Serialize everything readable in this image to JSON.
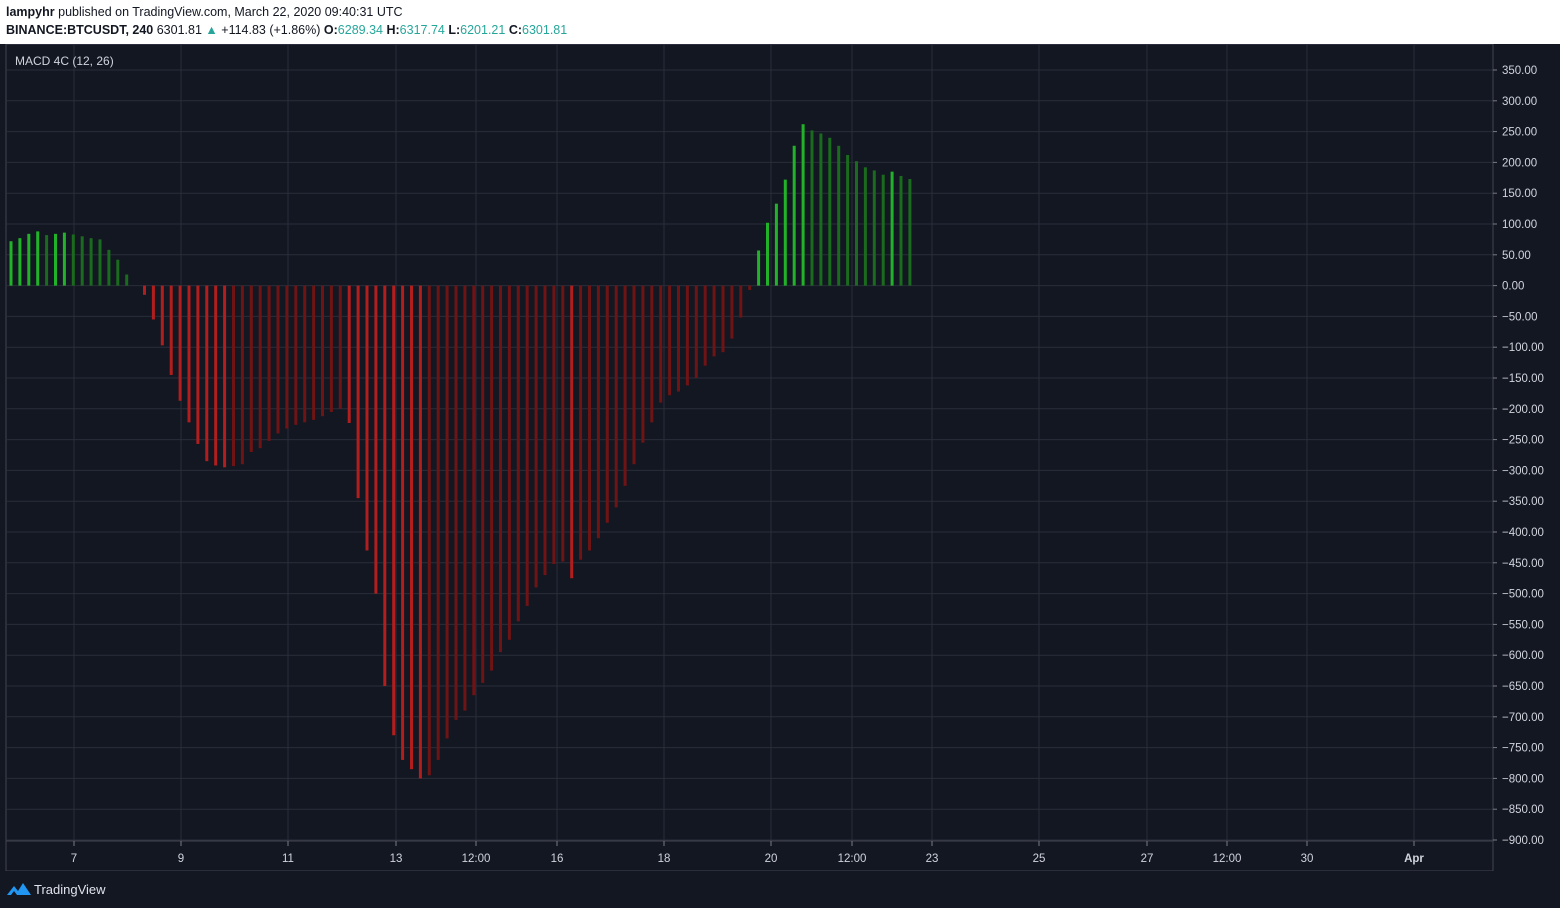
{
  "header": {
    "author": "lampyhr",
    "published_text": "published on TradingView.com, March 22, 2020 09:40:31 UTC",
    "symbol": "BINANCE:BTCUSDT, 240",
    "last_price": "6301.81",
    "change_arrow": "▲",
    "change": "+114.83 (+1.86%)",
    "open_label": "O:",
    "open": "6289.34",
    "high_label": "H:",
    "high": "6317.74",
    "low_label": "L:",
    "low": "6201.21",
    "close_label": "C:",
    "close": "6301.81"
  },
  "footer": {
    "brand": "TradingView"
  },
  "colors": {
    "background": "#131722",
    "grid": "#2a2e39",
    "bright_green": "#22b22a",
    "dark_green": "#1a6b1e",
    "bright_red": "#b21e1e",
    "dark_red": "#6e1414"
  },
  "chart_data": {
    "type": "bar",
    "title": "MACD 4C (12, 26)",
    "ylim": [
      -900,
      350
    ],
    "y_ticks": [
      "350.00",
      "300.00",
      "250.00",
      "200.00",
      "150.00",
      "100.00",
      "50.00",
      "0.00",
      "−50.00",
      "−100.00",
      "−150.00",
      "−200.00",
      "−250.00",
      "−300.00",
      "−350.00",
      "−400.00",
      "−450.00",
      "−500.00",
      "−550.00",
      "−600.00",
      "−650.00",
      "−700.00",
      "−750.00",
      "−800.00",
      "−850.00",
      "−900.00"
    ],
    "x_ticks": [
      "7",
      "9",
      "11",
      "13",
      "12:00",
      "16",
      "18",
      "20",
      "12:00",
      "23",
      "25",
      "27",
      "12:00",
      "30",
      "Apr"
    ],
    "grid": true,
    "series": [
      {
        "values": [
          72,
          77,
          84,
          88,
          82,
          84,
          86,
          83,
          80,
          77,
          75,
          58,
          42,
          18,
          0,
          -15,
          -55,
          -97,
          -145,
          -187,
          -222,
          -257,
          -285,
          -292,
          -295,
          -293,
          -290,
          -270,
          -264,
          -252,
          -240,
          -232,
          -226,
          -222,
          -218,
          -212,
          -205,
          -200,
          -223,
          -345,
          -430,
          -500,
          -650,
          -730,
          -770,
          -785,
          -800,
          -795,
          -770,
          -735,
          -705,
          -690,
          -665,
          -645,
          -625,
          -595,
          -575,
          -545,
          -520,
          -490,
          -470,
          -452,
          -448,
          -475,
          -445,
          -430,
          -410,
          -385,
          -360,
          -325,
          -290,
          -255,
          -222,
          -190,
          -178,
          -172,
          -162,
          -150,
          -130,
          -115,
          -108,
          -86,
          -52,
          -7,
          57,
          102,
          133,
          172,
          227,
          262,
          252,
          247,
          240,
          227,
          212,
          202,
          192,
          187,
          180,
          185,
          178,
          173
        ]
      }
    ]
  }
}
